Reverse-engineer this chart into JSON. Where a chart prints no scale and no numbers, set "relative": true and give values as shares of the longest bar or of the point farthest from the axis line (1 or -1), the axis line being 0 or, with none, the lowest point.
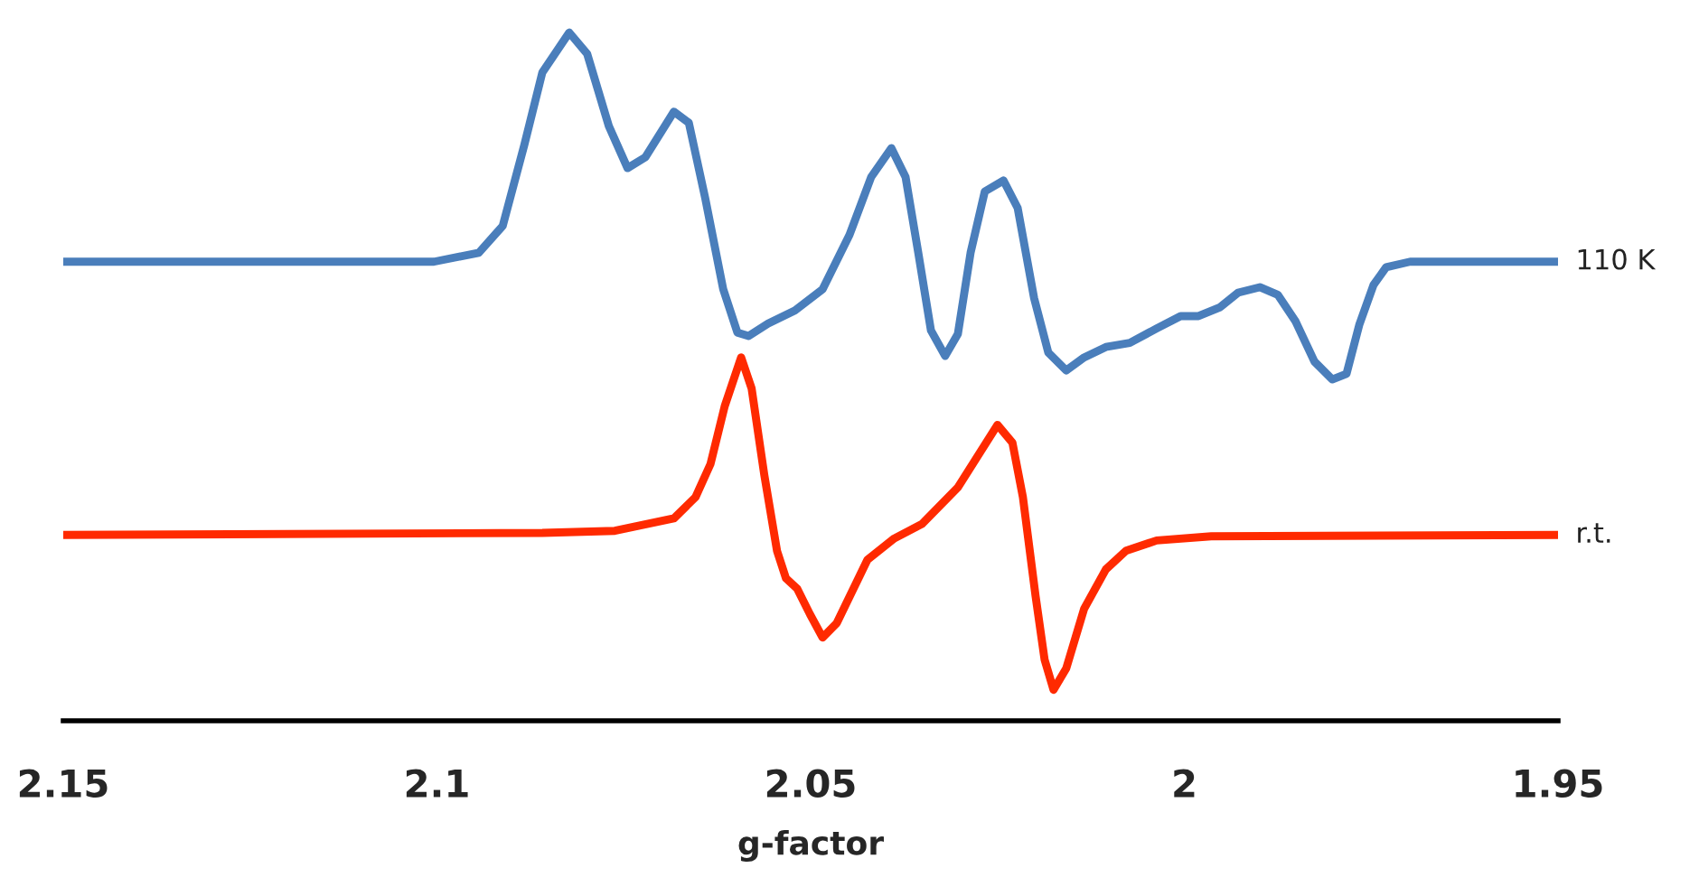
{
  "chart_data": {
    "type": "line",
    "xlabel": "g-factor",
    "relative": true,
    "legend": false,
    "grid": false,
    "tick_labels": "x",
    "marker": "none",
    "line_style": "solid",
    "xlim": [
      2.15,
      1.95
    ],
    "xticks": [
      2.15,
      2.1,
      2.05,
      2,
      1.95
    ],
    "series": [
      {
        "name": "110 K",
        "color": "#4a7ebb",
        "x": [
          2.15,
          2.1004,
          2.0944,
          2.0912,
          2.0883,
          2.0859,
          2.0823,
          2.0799,
          2.077,
          2.0745,
          2.0721,
          2.0683,
          2.0663,
          2.0641,
          2.0617,
          2.0598,
          2.0583,
          2.0557,
          2.0521,
          2.0484,
          2.0448,
          2.0419,
          2.0392,
          2.0373,
          2.0356,
          2.0339,
          2.032,
          2.0303,
          2.0286,
          2.0267,
          2.0242,
          2.0223,
          2.0201,
          2.0182,
          2.0158,
          2.0134,
          2.0105,
          2.0073,
          2.0037,
          2.0005,
          1.9981,
          1.9952,
          1.9928,
          1.9899,
          1.9875,
          1.9851,
          1.9826,
          1.9802,
          1.9783,
          1.9766,
          1.9747,
          1.973,
          1.9698,
          1.95
        ],
        "values": [
          0.667,
          0.667,
          0.68,
          0.719,
          0.837,
          0.942,
          1.0,
          0.969,
          0.864,
          0.803,
          0.819,
          0.885,
          0.869,
          0.759,
          0.627,
          0.564,
          0.559,
          0.577,
          0.596,
          0.627,
          0.706,
          0.79,
          0.832,
          0.79,
          0.68,
          0.567,
          0.53,
          0.562,
          0.68,
          0.769,
          0.785,
          0.745,
          0.614,
          0.535,
          0.509,
          0.528,
          0.543,
          0.549,
          0.57,
          0.588,
          0.588,
          0.601,
          0.622,
          0.63,
          0.619,
          0.58,
          0.522,
          0.496,
          0.504,
          0.575,
          0.633,
          0.659,
          0.667,
          0.667
        ]
      },
      {
        "name": "r.t.",
        "color": "#ff2a00",
        "x": [
          2.15,
          2.0859,
          2.0762,
          2.0683,
          2.0654,
          2.0634,
          2.0615,
          2.0593,
          2.0579,
          2.0562,
          2.0545,
          2.0533,
          2.0518,
          2.0501,
          2.0484,
          2.0465,
          2.0424,
          2.0388,
          2.0351,
          2.0303,
          2.025,
          2.023,
          2.0216,
          2.0199,
          2.0187,
          2.0175,
          2.0158,
          2.0134,
          2.0105,
          2.0078,
          2.0037,
          1.9964,
          1.95
        ],
        "values": [
          0.27,
          0.273,
          0.276,
          0.294,
          0.325,
          0.373,
          0.457,
          0.528,
          0.483,
          0.357,
          0.247,
          0.207,
          0.192,
          0.155,
          0.121,
          0.142,
          0.234,
          0.265,
          0.286,
          0.339,
          0.43,
          0.404,
          0.325,
          0.181,
          0.089,
          0.045,
          0.076,
          0.163,
          0.22,
          0.247,
          0.262,
          0.268,
          0.27
        ]
      }
    ]
  }
}
